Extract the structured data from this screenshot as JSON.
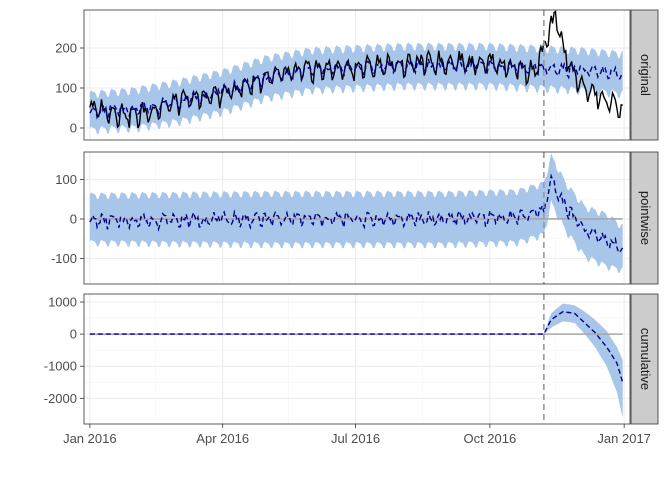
{
  "chart_data": {
    "type": "line",
    "x_range": [
      "2015-12-28",
      "2017-01-05"
    ],
    "x_ticks": [
      {
        "date": "2016-01-01",
        "label": "Jan 2016"
      },
      {
        "date": "2016-04-01",
        "label": "Apr 2016"
      },
      {
        "date": "2016-07-01",
        "label": "Jul 2016"
      },
      {
        "date": "2016-10-01",
        "label": "Oct 2016"
      },
      {
        "date": "2017-01-01",
        "label": "Jan 2017"
      }
    ],
    "x_minor_ticks": [
      "2016-02-15",
      "2016-05-16",
      "2016-08-16",
      "2016-11-15"
    ],
    "intervention_date": "2016-11-07",
    "grid": true,
    "colors": {
      "band": "#a8c5ea",
      "observed": "#000000",
      "predicted": "#00008b",
      "zero_line": "#a6a6a6",
      "intervention": "#999999",
      "strip_bg": "#cccccc",
      "grid_major": "#ebebeb",
      "grid_minor": "#f5f5f5"
    },
    "panels": [
      {
        "strip": "original",
        "ylim": [
          -30,
          295
        ],
        "y_ticks": [
          0,
          100,
          200
        ],
        "zero_line": false,
        "has_observed": true,
        "band_points": [
          {
            "x": "2016-01-01",
            "lo": -5,
            "hi": 85
          },
          {
            "x": "2016-02-01",
            "lo": 0,
            "hi": 95
          },
          {
            "x": "2016-03-01",
            "lo": 15,
            "hi": 115
          },
          {
            "x": "2016-04-01",
            "lo": 40,
            "hi": 140
          },
          {
            "x": "2016-05-01",
            "lo": 75,
            "hi": 175
          },
          {
            "x": "2016-06-01",
            "lo": 95,
            "hi": 195
          },
          {
            "x": "2016-07-01",
            "lo": 100,
            "hi": 200
          },
          {
            "x": "2016-08-01",
            "lo": 105,
            "hi": 205
          },
          {
            "x": "2016-09-01",
            "lo": 105,
            "hi": 205
          },
          {
            "x": "2016-10-01",
            "lo": 105,
            "hi": 205
          },
          {
            "x": "2016-11-01",
            "lo": 100,
            "hi": 200
          },
          {
            "x": "2016-12-01",
            "lo": 95,
            "hi": 195
          },
          {
            "x": "2016-12-31",
            "lo": 85,
            "hi": 185
          }
        ],
        "predicted_points": [
          {
            "x": "2016-01-01",
            "y": 40
          },
          {
            "x": "2016-02-01",
            "y": 48
          },
          {
            "x": "2016-03-01",
            "y": 65
          },
          {
            "x": "2016-04-01",
            "y": 90
          },
          {
            "x": "2016-05-01",
            "y": 125
          },
          {
            "x": "2016-06-01",
            "y": 145
          },
          {
            "x": "2016-07-01",
            "y": 150
          },
          {
            "x": "2016-08-01",
            "y": 155
          },
          {
            "x": "2016-09-01",
            "y": 155
          },
          {
            "x": "2016-10-01",
            "y": 155
          },
          {
            "x": "2016-11-01",
            "y": 150
          },
          {
            "x": "2016-12-01",
            "y": 145
          },
          {
            "x": "2016-12-31",
            "y": 135
          }
        ],
        "observed_points": [
          {
            "x": "2016-01-01",
            "y": 50
          },
          {
            "x": "2016-02-01",
            "y": 30
          },
          {
            "x": "2016-03-01",
            "y": 65
          },
          {
            "x": "2016-04-01",
            "y": 85
          },
          {
            "x": "2016-05-01",
            "y": 125
          },
          {
            "x": "2016-06-01",
            "y": 145
          },
          {
            "x": "2016-07-01",
            "y": 150
          },
          {
            "x": "2016-08-01",
            "y": 160
          },
          {
            "x": "2016-09-01",
            "y": 165
          },
          {
            "x": "2016-10-01",
            "y": 165
          },
          {
            "x": "2016-11-01",
            "y": 140
          },
          {
            "x": "2016-11-12",
            "y": 250
          },
          {
            "x": "2016-11-15",
            "y": 280
          },
          {
            "x": "2016-11-20",
            "y": 200
          },
          {
            "x": "2016-12-01",
            "y": 110
          },
          {
            "x": "2016-12-15",
            "y": 75
          },
          {
            "x": "2016-12-31",
            "y": 50
          }
        ],
        "noise": {
          "predicted": 22,
          "observed": 35,
          "band": 12
        }
      },
      {
        "strip": "pointwise",
        "ylim": [
          -165,
          170
        ],
        "y_ticks": [
          -100,
          0,
          100
        ],
        "zero_line": true,
        "has_observed": false,
        "band_points": [
          {
            "x": "2016-01-01",
            "lo": -60,
            "hi": 60
          },
          {
            "x": "2016-05-01",
            "lo": -65,
            "hi": 65
          },
          {
            "x": "2016-09-01",
            "lo": -65,
            "hi": 65
          },
          {
            "x": "2016-10-20",
            "lo": -60,
            "hi": 70
          },
          {
            "x": "2016-11-07",
            "lo": -40,
            "hi": 90
          },
          {
            "x": "2016-11-12",
            "lo": 40,
            "hi": 160
          },
          {
            "x": "2016-11-22",
            "lo": -30,
            "hi": 90
          },
          {
            "x": "2016-12-05",
            "lo": -95,
            "hi": 30
          },
          {
            "x": "2016-12-20",
            "lo": -120,
            "hi": 10
          },
          {
            "x": "2016-12-31",
            "lo": -130,
            "hi": -20
          }
        ],
        "predicted_points": [
          {
            "x": "2016-01-01",
            "y": -5
          },
          {
            "x": "2016-05-01",
            "y": 0
          },
          {
            "x": "2016-09-01",
            "y": 0
          },
          {
            "x": "2016-10-20",
            "y": 5
          },
          {
            "x": "2016-11-07",
            "y": 20
          },
          {
            "x": "2016-11-12",
            "y": 100
          },
          {
            "x": "2016-11-22",
            "y": 30
          },
          {
            "x": "2016-12-05",
            "y": -30
          },
          {
            "x": "2016-12-20",
            "y": -55
          },
          {
            "x": "2016-12-31",
            "y": -75
          }
        ],
        "noise": {
          "predicted": 24,
          "band": 10
        }
      },
      {
        "strip": "cumulative",
        "ylim": [
          -2800,
          1250
        ],
        "y_ticks": [
          -2000,
          -1000,
          0,
          1000
        ],
        "zero_line": true,
        "has_observed": false,
        "band_points": [
          {
            "x": "2016-01-01",
            "lo": 0,
            "hi": 0
          },
          {
            "x": "2016-11-07",
            "lo": 0,
            "hi": 0
          },
          {
            "x": "2016-11-12",
            "lo": 200,
            "hi": 650
          },
          {
            "x": "2016-11-20",
            "lo": 400,
            "hi": 950
          },
          {
            "x": "2016-11-28",
            "lo": 350,
            "hi": 900
          },
          {
            "x": "2016-12-05",
            "lo": 0,
            "hi": 700
          },
          {
            "x": "2016-12-12",
            "lo": -400,
            "hi": 450
          },
          {
            "x": "2016-12-20",
            "lo": -1000,
            "hi": 100
          },
          {
            "x": "2016-12-27",
            "lo": -1800,
            "hi": -400
          },
          {
            "x": "2016-12-31",
            "lo": -2600,
            "hi": -800
          }
        ],
        "predicted_points": [
          {
            "x": "2016-01-01",
            "y": 0
          },
          {
            "x": "2016-11-07",
            "y": 0
          },
          {
            "x": "2016-11-12",
            "y": 450
          },
          {
            "x": "2016-11-20",
            "y": 700
          },
          {
            "x": "2016-11-28",
            "y": 650
          },
          {
            "x": "2016-12-05",
            "y": 350
          },
          {
            "x": "2016-12-12",
            "y": 50
          },
          {
            "x": "2016-12-20",
            "y": -400
          },
          {
            "x": "2016-12-27",
            "y": -900
          },
          {
            "x": "2016-12-31",
            "y": -1500
          }
        ],
        "noise": {
          "predicted": 0,
          "band": 0
        }
      }
    ]
  }
}
